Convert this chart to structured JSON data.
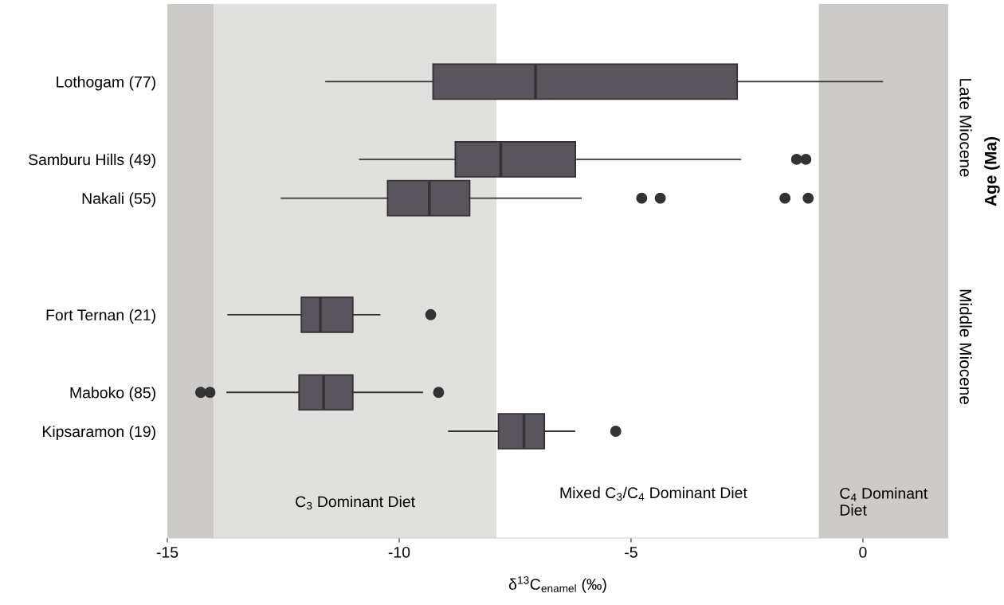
{
  "chart_data": {
    "type": "box",
    "orientation": "horizontal",
    "xlabel": "δ$^{13}$C$_{enamel}$ (‰)",
    "ylabel": "Age (Ma)",
    "categories": [
      "Lothogam (77)",
      null,
      "Samburu Hills (49)",
      "Nakali (55)",
      null,
      null,
      "Fort Ternan (21)",
      null,
      "Maboko (85)",
      "Kipsaramon (19)"
    ],
    "color": "#5a545c",
    "boxes": [
      {
        "low": -11.58,
        "q1": -9.27,
        "median": -7.06,
        "q3": -2.71,
        "high": 0.42
      },
      null,
      {
        "low": -10.85,
        "q1": -8.79,
        "median": -7.81,
        "q3": -6.2,
        "high": -2.64,
        "outliers": [
          -1.43,
          -1.23
        ]
      },
      {
        "low": -12.54,
        "q1": -10.25,
        "median": -9.35,
        "q3": -8.48,
        "high": -6.08,
        "outliers": [
          -4.77,
          -4.37,
          -1.68,
          -1.18
        ]
      },
      null,
      null,
      {
        "low": -13.69,
        "q1": -12.11,
        "median": -11.7,
        "q3": -11.0,
        "high": -10.42,
        "outliers": [
          -9.32
        ]
      },
      null,
      {
        "low": -13.71,
        "q1": -12.16,
        "median": -11.63,
        "q3": -11.0,
        "high": -9.5,
        "outliers": [
          -14.28,
          -14.08,
          -9.15
        ]
      },
      {
        "low": -8.93,
        "q1": -7.86,
        "median": -7.31,
        "q3": -6.87,
        "high": -6.22,
        "outliers": [
          -5.33
        ]
      }
    ],
    "xlim": [
      -15,
      1.84
    ],
    "xticks": [
      -15,
      -10,
      -5,
      0
    ],
    "bands": [
      {
        "axis": "x",
        "from": -15,
        "to": -14,
        "color": "#cccbca"
      },
      {
        "axis": "x",
        "from": -14,
        "to": -7.9,
        "color": "#e0e0df",
        "label": "C$_{3}$ Dominant Diet"
      },
      {
        "axis": "x",
        "from": -0.95,
        "to": 1.84,
        "color": "#cccbca",
        "label": "C$_{4}$ Dominant\nDiet"
      }
    ],
    "annotations": [
      "Late Miocene",
      "Middle Miocene",
      "Mixed C$_{3}$/C$_{4}$ Dominant Diet"
    ],
    "grid": false
  }
}
